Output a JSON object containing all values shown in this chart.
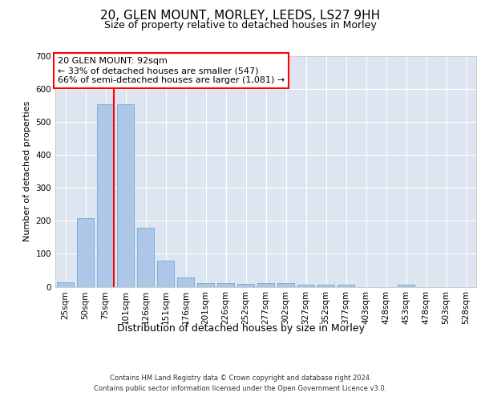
{
  "title": "20, GLEN MOUNT, MORLEY, LEEDS, LS27 9HH",
  "subtitle": "Size of property relative to detached houses in Morley",
  "xlabel": "Distribution of detached houses by size in Morley",
  "ylabel": "Number of detached properties",
  "categories": [
    "25sqm",
    "50sqm",
    "75sqm",
    "101sqm",
    "126sqm",
    "151sqm",
    "176sqm",
    "201sqm",
    "226sqm",
    "252sqm",
    "277sqm",
    "302sqm",
    "327sqm",
    "352sqm",
    "377sqm",
    "403sqm",
    "428sqm",
    "453sqm",
    "478sqm",
    "503sqm",
    "528sqm"
  ],
  "values": [
    13,
    207,
    555,
    553,
    178,
    78,
    28,
    12,
    11,
    8,
    10,
    10,
    7,
    5,
    5,
    0,
    0,
    5,
    0,
    0,
    0
  ],
  "bar_color": "#aec6e8",
  "bar_edge_color": "#6aaad4",
  "ylim": [
    0,
    700
  ],
  "yticks": [
    0,
    100,
    200,
    300,
    400,
    500,
    600,
    700
  ],
  "annotation_text": "20 GLEN MOUNT: 92sqm\n← 33% of detached houses are smaller (547)\n66% of semi-detached houses are larger (1,081) →",
  "red_line_x": 2.425,
  "footer_line1": "Contains HM Land Registry data © Crown copyright and database right 2024.",
  "footer_line2": "Contains public sector information licensed under the Open Government Licence v3.0.",
  "bg_color": "#dde5f0",
  "title_fontsize": 11,
  "subtitle_fontsize": 9,
  "ylabel_fontsize": 8,
  "xlabel_fontsize": 9,
  "tick_fontsize": 7.5,
  "annot_fontsize": 8,
  "footer_fontsize": 6
}
